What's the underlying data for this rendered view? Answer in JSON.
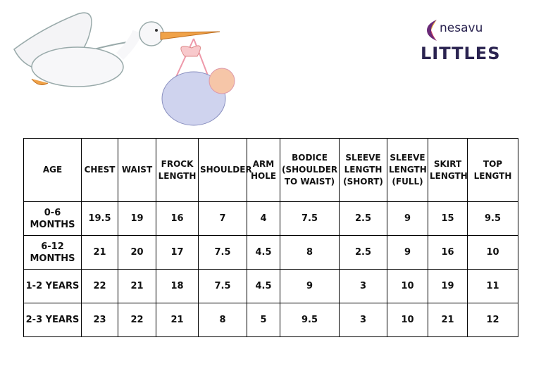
{
  "brand": {
    "name": "nesavu",
    "product": "LITTLES"
  },
  "table": {
    "header": [
      "AGE",
      "CHEST",
      "WAIST",
      "FROCK LENGTH",
      "SHOULDER",
      "ARM HOLE",
      "BODICE (SHOULDER TO WAIST)",
      "SLEEVE LENGTH (SHORT)",
      "SLEEVE LENGTH (FULL)",
      "SKIRT LENGTH",
      "TOP LENGTH"
    ],
    "rows": [
      [
        "0-6 MONTHS",
        "19.5",
        "19",
        "16",
        "7",
        "4",
        "7.5",
        "2.5",
        "9",
        "15",
        "9.5"
      ],
      [
        "6-12 MONTHS",
        "21",
        "20",
        "17",
        "7.5",
        "4.5",
        "8",
        "2.5",
        "9",
        "16",
        "10"
      ],
      [
        "1-2 YEARS",
        "22",
        "21",
        "18",
        "7.5",
        "4.5",
        "9",
        "3",
        "10",
        "19",
        "11"
      ],
      [
        "2-3 YEARS",
        "23",
        "22",
        "21",
        "8",
        "5",
        "9.5",
        "3",
        "10",
        "21",
        "12"
      ]
    ]
  }
}
